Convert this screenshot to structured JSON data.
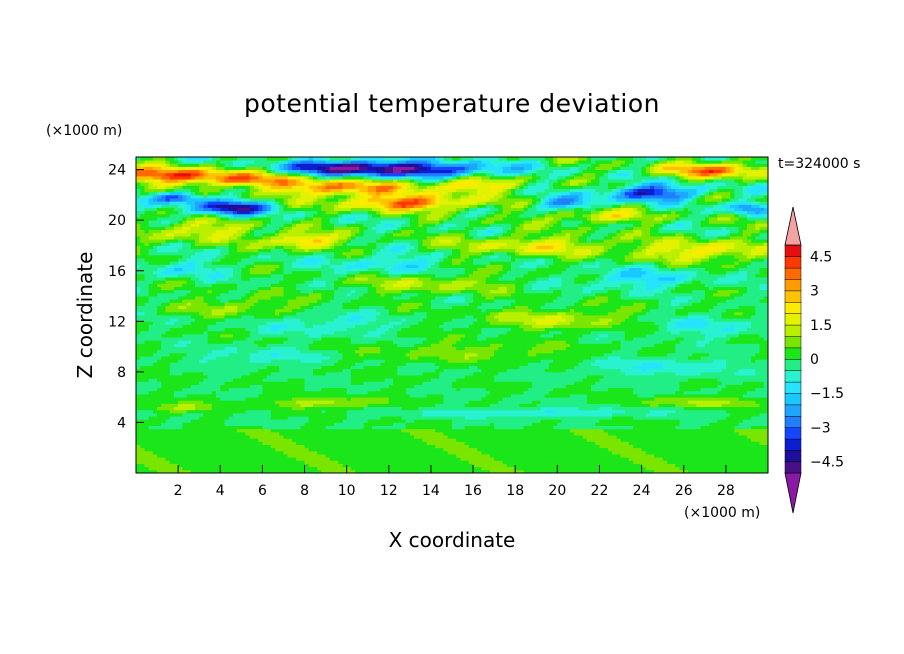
{
  "chart_data": {
    "type": "heatmap",
    "title": "potential temperature deviation",
    "xlabel": "X coordinate",
    "ylabel": "Z coordinate",
    "x_unit": "(×1000 m)",
    "y_unit": "(×1000 m)",
    "time_label": "t=324000 s",
    "xlim": [
      0,
      30
    ],
    "ylim": [
      0,
      25
    ],
    "xticks": [
      2,
      4,
      6,
      8,
      10,
      12,
      14,
      16,
      18,
      20,
      22,
      24,
      26,
      28
    ],
    "yticks": [
      4,
      8,
      12,
      16,
      20,
      24
    ],
    "colorbar": {
      "levels": [
        -5,
        -4.5,
        -4,
        -3.5,
        -3,
        -2.5,
        -2,
        -1.5,
        -1,
        -0.5,
        0,
        0.5,
        1,
        1.5,
        2,
        2.5,
        3,
        3.5,
        4,
        4.5,
        5
      ],
      "tick_labels": [
        "4.5",
        "3",
        "1.5",
        "0",
        "−1.5",
        "−3",
        "−4.5"
      ],
      "tick_values": [
        4.5,
        3,
        1.5,
        0,
        -1.5,
        -3,
        -4.5
      ],
      "colors": [
        "#4a0f87",
        "#1c0f9c",
        "#0c1ed2",
        "#1446ff",
        "#1f80ff",
        "#1ea6ff",
        "#19c8ff",
        "#25e4ff",
        "#29f2d1",
        "#22ee86",
        "#1ae61a",
        "#7ae600",
        "#b9f000",
        "#e2f200",
        "#ffeb00",
        "#ffc200",
        "#ff9c00",
        "#ff6a00",
        "#ff3700",
        "#e60f0f"
      ],
      "over_color": "#f4a2a2",
      "under_color": "#8a1aa6"
    },
    "field_note": "gridded field reconstructed approximately from image: weak perturbations (-0.5 to 0.5) below 12 km, stronger alternating layers (-4 to 5) in upper 18-25 km"
  }
}
